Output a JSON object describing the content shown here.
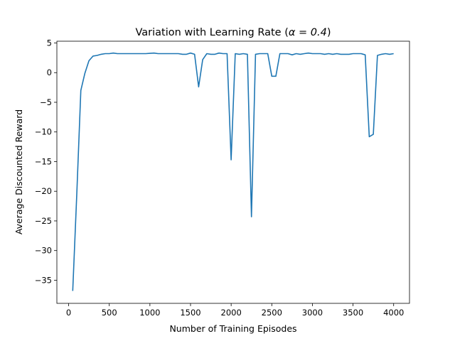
{
  "chart_data": {
    "type": "line",
    "title_prefix": "Variation with Learning Rate (",
    "title_math": "α = 0.4",
    "title_suffix": ")",
    "xlabel": "Number of Training Episodes",
    "ylabel": "Average Discounted Reward",
    "xlim": [
      -145,
      4195
    ],
    "ylim": [
      -38.9,
      5.3
    ],
    "xticks": [
      0,
      500,
      1000,
      1500,
      2000,
      2500,
      3000,
      3500,
      4000
    ],
    "yticks": [
      5,
      0,
      -5,
      -10,
      -15,
      -20,
      -25,
      -30,
      -35
    ],
    "grid": false,
    "legend": "none",
    "colors": {
      "line": "#1f77b4",
      "axes": "#000000",
      "background": "#ffffff"
    },
    "series": [
      {
        "x": [
          50,
          100,
          150,
          200,
          250,
          300,
          350,
          400,
          450,
          500,
          550,
          600,
          650,
          700,
          750,
          800,
          850,
          900,
          950,
          1000,
          1050,
          1100,
          1150,
          1200,
          1250,
          1300,
          1350,
          1400,
          1450,
          1500,
          1550,
          1600,
          1650,
          1700,
          1750,
          1800,
          1850,
          1900,
          1950,
          2000,
          2050,
          2100,
          2150,
          2200,
          2250,
          2300,
          2350,
          2400,
          2450,
          2500,
          2550,
          2600,
          2650,
          2700,
          2750,
          2800,
          2850,
          2900,
          2950,
          3000,
          3050,
          3100,
          3150,
          3200,
          3250,
          3300,
          3350,
          3400,
          3450,
          3500,
          3550,
          3600,
          3650,
          3700,
          3750,
          3800,
          3850,
          3900,
          3950,
          4000
        ],
        "y": [
          -36.8,
          -20.5,
          -3.0,
          -0.1,
          2.0,
          2.8,
          2.9,
          3.1,
          3.2,
          3.2,
          3.3,
          3.2,
          3.2,
          3.2,
          3.2,
          3.2,
          3.2,
          3.2,
          3.2,
          3.25,
          3.3,
          3.2,
          3.2,
          3.2,
          3.2,
          3.2,
          3.2,
          3.1,
          3.1,
          3.3,
          3.1,
          -2.4,
          2.2,
          3.2,
          3.1,
          3.1,
          3.3,
          3.2,
          3.2,
          -14.7,
          3.2,
          3.1,
          3.2,
          3.1,
          -24.3,
          3.1,
          3.2,
          3.2,
          3.2,
          -0.6,
          -0.6,
          3.2,
          3.2,
          3.2,
          3.0,
          3.2,
          3.1,
          3.2,
          3.3,
          3.2,
          3.2,
          3.2,
          3.1,
          3.2,
          3.1,
          3.2,
          3.1,
          3.1,
          3.1,
          3.2,
          3.2,
          3.2,
          3.0,
          -10.8,
          -10.4,
          2.9,
          3.1,
          3.2,
          3.1,
          3.2
        ]
      }
    ]
  }
}
